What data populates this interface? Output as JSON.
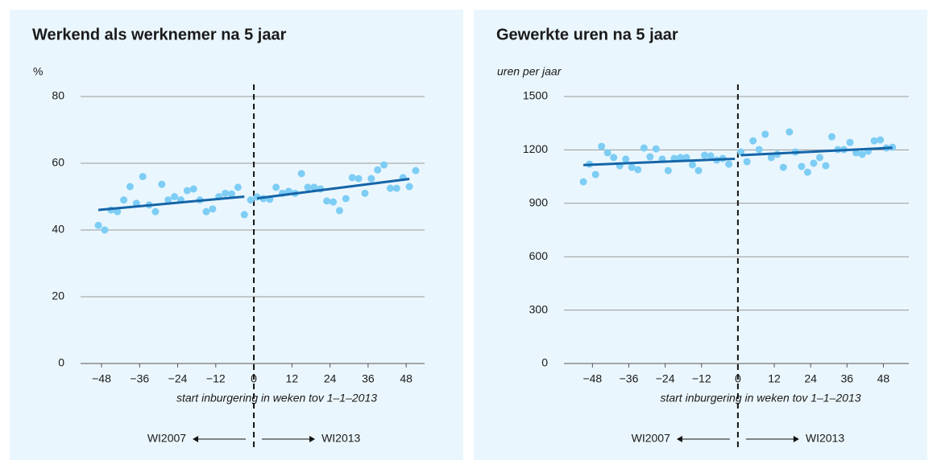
{
  "chart_data": [
    {
      "type": "scatter",
      "title": "Werkend als werknemer na 5 jaar",
      "y_label": "%",
      "x_label": "start inburgering in weken tov 1–1–2013",
      "xlim": [
        -54.6,
        53.8
      ],
      "ylim": [
        0,
        80
      ],
      "yticks": [
        0,
        20,
        40,
        60,
        80
      ],
      "xticks": [
        {
          "value": -48,
          "label": "−48"
        },
        {
          "value": -36,
          "label": "−36"
        },
        {
          "value": -24,
          "label": "−24"
        },
        {
          "value": -12,
          "label": "−12"
        },
        0,
        12,
        24,
        36,
        48
      ],
      "grid": true,
      "reference_line_x": 0,
      "arrow_labels": [
        "WI2007",
        "WI2013"
      ],
      "series": [
        {
          "type": "scatter",
          "color": "#7dcdf5",
          "x": [
            -49,
            -47,
            -45,
            -43,
            -41,
            -39,
            -37,
            -35,
            -33,
            -31,
            -29,
            -27,
            -25,
            -23,
            -21,
            -19,
            -17,
            -15,
            -13,
            -11,
            -9,
            -7,
            -5,
            -3,
            -1
          ],
          "values": [
            41.4,
            40,
            46,
            45.5,
            49,
            53,
            48,
            56,
            47.5,
            45.5,
            53.7,
            49,
            50,
            49,
            51.8,
            52.3,
            49,
            45.5,
            46.3,
            50,
            51,
            50.8,
            52.8,
            44.6,
            49
          ]
        },
        {
          "type": "scatter",
          "color": "#7dcdf5",
          "x": [
            1,
            3,
            5,
            7,
            9,
            11,
            13,
            15,
            17,
            19,
            21,
            23,
            25,
            27,
            29,
            31,
            33,
            35,
            37,
            39,
            41,
            43,
            45,
            47,
            49,
            51
          ],
          "values": [
            49.9,
            49.4,
            49.2,
            52.8,
            51,
            51.6,
            51,
            56.9,
            52.8,
            52.8,
            52.3,
            48.7,
            48.4,
            45.8,
            49.4,
            55.7,
            55.4,
            51,
            55.4,
            58,
            59.5,
            52.5,
            52.5,
            55.7,
            53,
            57.8
          ]
        },
        {
          "type": "line",
          "color": "#1565a8",
          "x": [
            -49,
            -3
          ],
          "values": [
            46,
            50
          ]
        },
        {
          "type": "line",
          "color": "#1565a8",
          "x": [
            1,
            49
          ],
          "values": [
            49.5,
            55.3
          ]
        }
      ]
    },
    {
      "type": "scatter",
      "title": "Gewerkte uren na 5 jaar",
      "y_label": "uren per jaar",
      "x_label": "start inburgering in weken tov 1–1–2013",
      "xlim": [
        -57.4,
        56.4
      ],
      "ylim": [
        0,
        1500
      ],
      "yticks": [
        0,
        300,
        600,
        900,
        1200,
        1500
      ],
      "xticks": [
        {
          "value": -48,
          "label": "−48"
        },
        {
          "value": -36,
          "label": "−36"
        },
        {
          "value": -24,
          "label": "−24"
        },
        {
          "value": -12,
          "label": "−12"
        },
        0,
        12,
        24,
        36,
        48
      ],
      "grid": true,
      "reference_line_x": 0,
      "arrow_labels": [
        "WI2007",
        "WI2013"
      ],
      "series": [
        {
          "type": "scatter",
          "color": "#7dcdf5",
          "x": [
            -51,
            -49,
            -47,
            -45,
            -43,
            -41,
            -39,
            -37,
            -35,
            -33,
            -31,
            -29,
            -27,
            -25,
            -23,
            -21,
            -19,
            -17,
            -15,
            -13,
            -11,
            -9,
            -7,
            -5,
            -3
          ],
          "values": [
            1021,
            1120,
            1062,
            1220,
            1184,
            1157,
            1111,
            1148,
            1102,
            1089,
            1211,
            1161,
            1206,
            1148,
            1084,
            1152,
            1157,
            1157,
            1116,
            1084,
            1170,
            1166,
            1143,
            1152,
            1120
          ]
        },
        {
          "type": "scatter",
          "color": "#7dcdf5",
          "x": [
            1,
            3,
            5,
            7,
            9,
            11,
            13,
            15,
            17,
            19,
            21,
            23,
            25,
            27,
            29,
            31,
            33,
            35,
            37,
            39,
            41,
            43,
            45,
            47,
            49,
            51
          ],
          "values": [
            1188,
            1134,
            1251,
            1202,
            1288,
            1157,
            1175,
            1102,
            1301,
            1188,
            1107,
            1075,
            1125,
            1157,
            1111,
            1274,
            1202,
            1202,
            1242,
            1184,
            1175,
            1193,
            1251,
            1256,
            1211,
            1215
          ]
        },
        {
          "type": "line",
          "color": "#1565a8",
          "x": [
            -51,
            -1
          ],
          "values": [
            1115,
            1150
          ]
        },
        {
          "type": "line",
          "color": "#1565a8",
          "x": [
            1,
            51
          ],
          "values": [
            1170,
            1212
          ]
        }
      ]
    }
  ]
}
